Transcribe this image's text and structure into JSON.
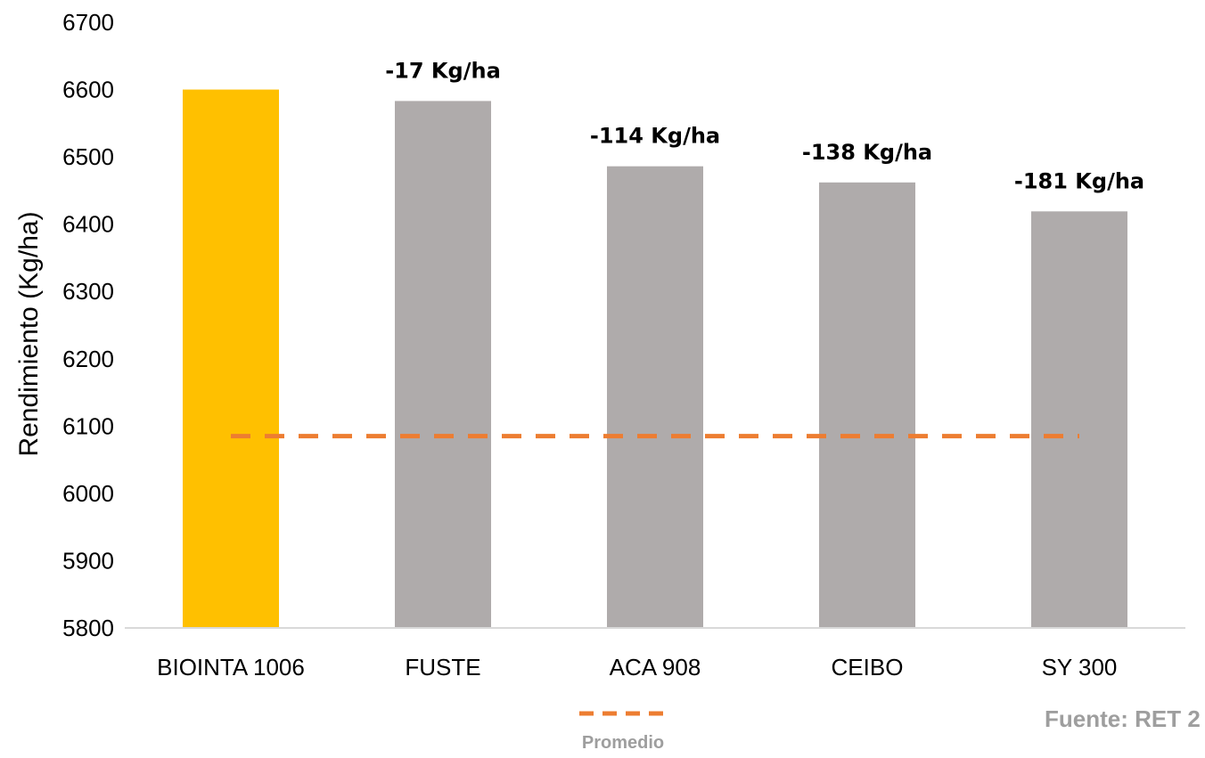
{
  "chart_data": {
    "type": "bar",
    "categories": [
      "BIOINTA 1006",
      "FUSTE",
      "ACA 908",
      "CEIBO",
      "SY 300"
    ],
    "values": [
      6600,
      6583,
      6486,
      6462,
      6419
    ],
    "data_labels": [
      "",
      "-17 Kg/ha",
      "-114 Kg/ha",
      "-138 Kg/ha",
      "-181 Kg/ha"
    ],
    "bar_colors": [
      "#FFC000",
      "#AFABAB",
      "#AFABAB",
      "#AFABAB",
      "#AFABAB"
    ],
    "ylabel": "Rendimiento (Kg/ha)",
    "xlabel": "",
    "ylim": [
      5800,
      6700
    ],
    "yticks": [
      5800,
      5900,
      6000,
      6100,
      6200,
      6300,
      6400,
      6500,
      6600,
      6700
    ],
    "grid": false,
    "reference_line": {
      "name": "Promedio",
      "value": 6085,
      "color": "#ED7D31",
      "style": "dashed"
    },
    "legend": {
      "placement": "bottom-center",
      "entries": [
        "Promedio"
      ]
    },
    "source": "Fuente: RET 2"
  }
}
